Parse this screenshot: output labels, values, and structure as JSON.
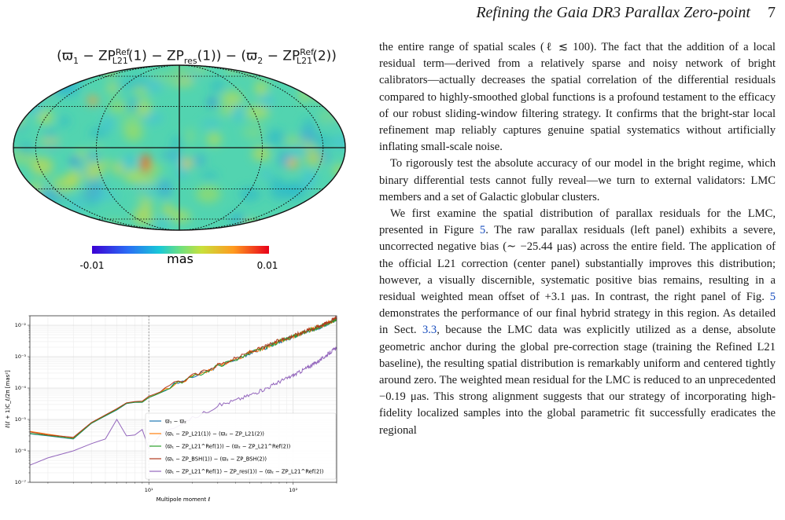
{
  "header": {
    "running_title": "Refining the Gaia DR3 Parallax Zero-point",
    "page_number": "7"
  },
  "figure": {
    "map": {
      "title_a": "(ϖ",
      "title_b": " − ZP",
      "title_c": "(1) − ZP",
      "title_d": "(1)) − (ϖ",
      "title_e": " − ZP",
      "title_f": "(2))",
      "sub1": "1",
      "sup_ref1": "Ref",
      "sub_l21_1": "L21",
      "sub_res": "res",
      "sub2": "2",
      "sup_ref2": "Ref",
      "sub_l21_2": "L21",
      "colorbar_min": "-0.01",
      "colorbar_max": "0.01",
      "colorbar_unit": "mas"
    },
    "chart_data": {
      "type": "line",
      "xlabel": "Multipole moment ℓ",
      "ylabel": "ℓ(ℓ + 1)C_ℓ/2π  [mas²]",
      "xscale": "log",
      "yscale": "log",
      "xlim": [
        1.5,
        200
      ],
      "ylim": [
        1e-07,
        0.02
      ],
      "x_ticks": [
        "10¹",
        "10²"
      ],
      "y_ticks": [
        "10⁻⁷",
        "10⁻⁶",
        "10⁻⁵",
        "10⁻⁴",
        "10⁻³",
        "10⁻²"
      ],
      "grid": true,
      "vline_x": 10,
      "legend_position": "lower-right",
      "series": [
        {
          "name": "ϖ₁ − ϖ₂",
          "color": "#1f77b4",
          "x": [
            1.5,
            2,
            3,
            4,
            5,
            6,
            7,
            8,
            9,
            10,
            12,
            15,
            20,
            30,
            50,
            80,
            120,
            200
          ],
          "y": [
            3.5e-06,
            3e-06,
            2.4e-06,
            7.5e-06,
            1.3e-05,
            2e-05,
            3.2e-05,
            3.5e-05,
            3.5e-05,
            5e-05,
            7e-05,
            0.00013,
            0.00022,
            0.0005,
            0.0013,
            0.003,
            0.006,
            0.015
          ]
        },
        {
          "name": "(ϖ₁ − ZP_L21(1)) − (ϖ₂ − ZP_L21(2))",
          "color": "#ff7f0e",
          "x": [
            1.5,
            2,
            3,
            4,
            5,
            6,
            7,
            8,
            9,
            10,
            12,
            15,
            20,
            30,
            50,
            80,
            120,
            200
          ],
          "y": [
            4.2e-06,
            3.4e-06,
            2.6e-06,
            7.8e-06,
            1.35e-05,
            2.1e-05,
            3.3e-05,
            3.6e-05,
            3.6e-05,
            5.1e-05,
            7.1e-05,
            0.000135,
            0.00023,
            0.00052,
            0.00135,
            0.0031,
            0.0062,
            0.016
          ]
        },
        {
          "name": "(ϖ₁ − ZP_L21^Ref(1)) − (ϖ₂ − ZP_L21^Ref(2))",
          "color": "#2ca02c",
          "x": [
            1.5,
            2,
            3,
            4,
            5,
            6,
            7,
            8,
            9,
            10,
            12,
            15,
            20,
            30,
            50,
            80,
            120,
            200
          ],
          "y": [
            3.6e-06,
            3.1e-06,
            2.45e-06,
            7.6e-06,
            1.32e-05,
            2.05e-05,
            3.25e-05,
            3.55e-05,
            3.55e-05,
            5.05e-05,
            7.05e-05,
            0.000132,
            0.000225,
            0.00051,
            0.00132,
            0.00305,
            0.0061,
            0.0155
          ]
        },
        {
          "name": "(ϖ₁ − ZP_BSH(1)) − (ϖ₂ − ZP_BSH(2))",
          "color": "#b03a1f",
          "x": [
            1.5,
            2,
            3,
            4,
            5,
            6,
            7,
            8,
            9,
            10,
            12,
            15,
            20,
            30,
            50,
            80,
            120,
            200
          ],
          "y": [
            4e-06,
            3.2e-06,
            2.7e-06,
            8e-06,
            1.4e-05,
            2.2e-05,
            3.4e-05,
            3.7e-05,
            3.8e-05,
            5.5e-05,
            7.5e-05,
            0.00014,
            0.00024,
            0.00055,
            0.0014,
            0.0033,
            0.0065,
            0.017
          ]
        },
        {
          "name": "(ϖ₁ − ZP_L21^Ref(1) − ZP_res(1)) − (ϖ₂ − ZP_L21^Ref(2))",
          "color": "#9467bd",
          "x": [
            1.5,
            2,
            3,
            4,
            5,
            6,
            7,
            8,
            9,
            10,
            12,
            15,
            20,
            30,
            50,
            80,
            120,
            200
          ],
          "y": [
            3.5e-07,
            6e-07,
            1e-06,
            1.7e-06,
            2.4e-06,
            1e-05,
            3e-06,
            3.2e-06,
            4.8e-06,
            1.2e-06,
            3.2e-06,
            6e-06,
            1.1e-05,
            2.8e-05,
            6e-05,
            0.00016,
            0.0004,
            0.002
          ]
        }
      ]
    }
  },
  "body": {
    "paragraphs": [
      "the entire range of spatial scales (ℓ ≲ 100). The fact that the addition of a local residual term—derived from a relatively sparse and noisy network of bright calibrators—actually decreases the spatial correlation of the differential residuals compared to highly-smoothed global functions is a profound testament to the efficacy of our robust sliding-window filtering strategy. It confirms that the bright-star local refinement map reliably captures genuine spatial systematics without artificially inflating small-scale noise.",
      "To rigorously test the absolute accuracy of our model in the bright regime, which binary differential tests cannot fully reveal—we turn to external validators: LMC members and a set of Galactic globular clusters."
    ],
    "p3_a": "We first examine the spatial distribution of parallax residuals for the LMC, presented in Figure ",
    "p3_ref1": "5",
    "p3_b": ". The raw parallax residuals (left panel) exhibits a severe, uncorrected negative bias (∼ −25.44 μas) across the entire field. The application of the official L21 correction (center panel) substantially improves this distribution; however, a visually discernible, systematic positive bias remains, resulting in a residual weighted mean offset of +3.1 μas. In contrast, the right panel of Fig. ",
    "p3_ref2": "5",
    "p3_c": " demonstrates the performance of our final hybrid strategy in this region. As detailed in Sect. ",
    "p3_ref3": "3.3",
    "p3_d": ", because the LMC data was explicitly utilized as a dense, absolute geometric anchor during the global pre-correction stage (training the Refined L21 baseline), the resulting spatial distribution is remarkably uniform and centered tightly around zero. The weighted mean residual for the LMC is reduced to an unprecedented −0.19 μas. This strong alignment suggests that our strategy of incorporating high-fidelity localized samples into the global parametric fit successfully eradicates the regional"
  },
  "colors": {
    "link": "#1a4fbf",
    "grid": "#dddddd"
  }
}
